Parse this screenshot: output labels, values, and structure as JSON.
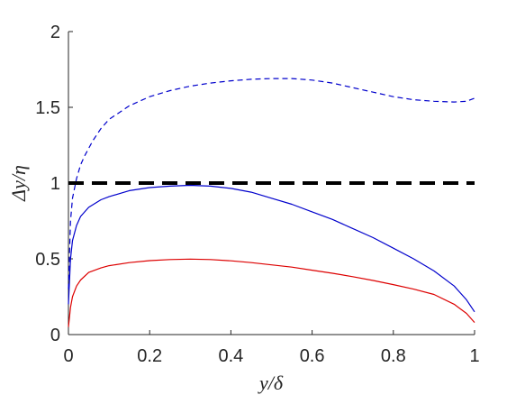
{
  "chart_data": {
    "type": "line",
    "xlabel": "y/δ",
    "ylabel": "Δy/η",
    "xlim": [
      0,
      1
    ],
    "ylim": [
      0,
      2
    ],
    "xticks": [
      0,
      0.2,
      0.4,
      0.6,
      0.8,
      1
    ],
    "yticks": [
      0,
      0.5,
      1,
      1.5,
      2
    ],
    "xtick_labels": [
      "0",
      "0.2",
      "0.4",
      "0.6",
      "0.8",
      "1"
    ],
    "ytick_labels": [
      "0",
      "0.5",
      "1",
      "1.5",
      "2"
    ],
    "grid": false,
    "legend": "none",
    "series": [
      {
        "color": "#0000cc",
        "style": "dashed",
        "x": [
          0.0,
          0.005,
          0.01,
          0.02,
          0.03,
          0.04,
          0.06,
          0.08,
          0.1,
          0.15,
          0.2,
          0.25,
          0.3,
          0.35,
          0.4,
          0.45,
          0.5,
          0.55,
          0.6,
          0.65,
          0.7,
          0.75,
          0.8,
          0.85,
          0.9,
          0.95,
          0.98,
          1.0
        ],
        "y": [
          0.3,
          0.75,
          0.9,
          1.03,
          1.12,
          1.18,
          1.28,
          1.36,
          1.42,
          1.51,
          1.57,
          1.61,
          1.64,
          1.66,
          1.675,
          1.685,
          1.69,
          1.69,
          1.68,
          1.66,
          1.63,
          1.6,
          1.57,
          1.55,
          1.54,
          1.535,
          1.54,
          1.56
        ]
      },
      {
        "color": "#000000",
        "style": "thick-dashed",
        "x": [
          0.0,
          1.0
        ],
        "y": [
          1.0,
          1.0
        ]
      },
      {
        "color": "#0000cc",
        "style": "solid",
        "x": [
          0.0,
          0.005,
          0.01,
          0.02,
          0.03,
          0.05,
          0.08,
          0.1,
          0.15,
          0.2,
          0.25,
          0.3,
          0.35,
          0.4,
          0.45,
          0.5,
          0.55,
          0.6,
          0.65,
          0.7,
          0.75,
          0.8,
          0.85,
          0.9,
          0.95,
          0.98,
          1.0
        ],
        "y": [
          0.2,
          0.5,
          0.62,
          0.72,
          0.78,
          0.84,
          0.89,
          0.91,
          0.95,
          0.97,
          0.98,
          0.985,
          0.98,
          0.965,
          0.94,
          0.9,
          0.86,
          0.81,
          0.76,
          0.7,
          0.64,
          0.57,
          0.5,
          0.42,
          0.32,
          0.23,
          0.15
        ]
      },
      {
        "color": "#dd0000",
        "style": "solid",
        "x": [
          0.0,
          0.005,
          0.01,
          0.02,
          0.03,
          0.05,
          0.08,
          0.1,
          0.15,
          0.2,
          0.25,
          0.3,
          0.35,
          0.4,
          0.45,
          0.5,
          0.55,
          0.6,
          0.65,
          0.7,
          0.75,
          0.8,
          0.85,
          0.9,
          0.95,
          0.98,
          1.0
        ],
        "y": [
          0.05,
          0.18,
          0.25,
          0.32,
          0.36,
          0.41,
          0.44,
          0.455,
          0.475,
          0.488,
          0.495,
          0.498,
          0.495,
          0.487,
          0.475,
          0.46,
          0.445,
          0.425,
          0.405,
          0.382,
          0.357,
          0.33,
          0.3,
          0.265,
          0.2,
          0.14,
          0.08
        ]
      }
    ]
  }
}
